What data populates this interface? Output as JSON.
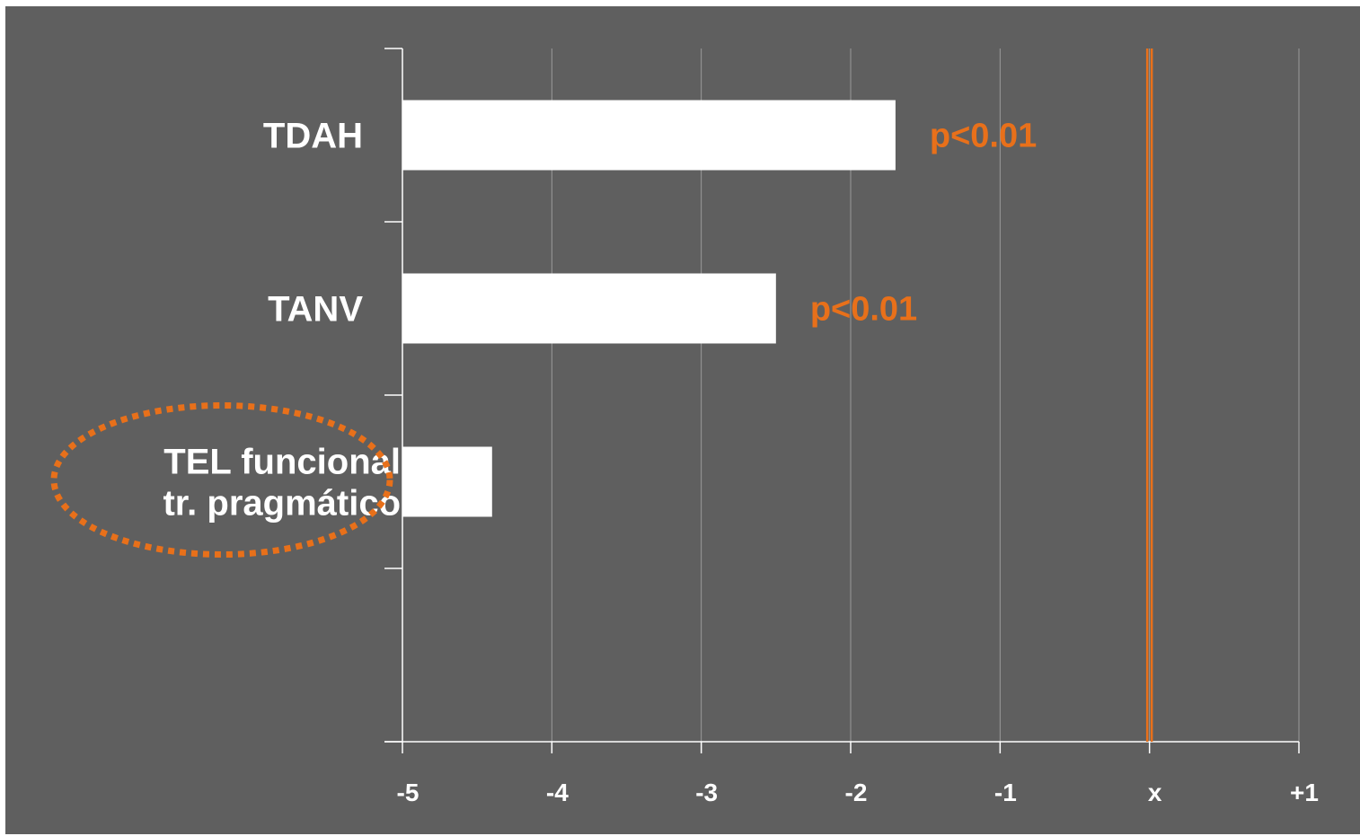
{
  "chart_data": {
    "type": "bar",
    "orientation": "horizontal",
    "categories": [
      "TDAH",
      "TANV",
      "TEL funcional tr. pragmático"
    ],
    "category_lines": [
      [
        "TDAH"
      ],
      [
        "TANV"
      ],
      [
        "TEL funcional",
        "tr. pragmático"
      ]
    ],
    "values": [
      -1.7,
      -2.5,
      -4.4
    ],
    "xlim": [
      -5,
      1
    ],
    "xticks": [
      -5,
      -4,
      -3,
      -2,
      -1,
      0,
      1
    ],
    "xtick_labels": [
      "-5",
      "-4",
      "-3",
      "-2",
      "-1",
      "x",
      "+1"
    ],
    "reference_line": 0,
    "annotations": [
      {
        "category": "TDAH",
        "text": "p<0.01"
      },
      {
        "category": "TANV",
        "text": "p<0.01"
      }
    ],
    "highlighted_category": "TEL funcional tr. pragmático",
    "grid": true,
    "title": "",
    "xlabel": "",
    "ylabel": ""
  },
  "colors": {
    "background": "#5f5f5f",
    "bar": "#ffffff",
    "text": "#ffffff",
    "accent": "#e8701a",
    "grid": "#9a9a9a"
  }
}
